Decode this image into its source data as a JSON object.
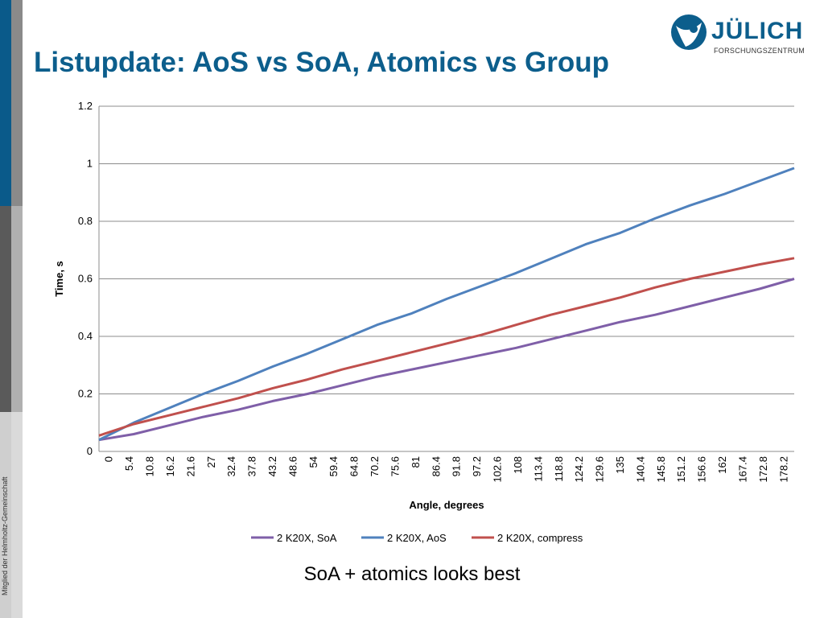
{
  "page": {
    "title": "Listupdate: AoS vs SoA, Atomics vs Group",
    "caption": "SoA + atomics looks best",
    "side_note": "Mitglied der Helmholtz-Gemeinschaft"
  },
  "logo": {
    "name": "JÜLICH",
    "subtitle": "FORSCHUNGSZENTRUM",
    "icon": "juelich-logo-icon",
    "color": "#0c5e8c"
  },
  "chart_data": {
    "type": "line",
    "xlabel": "Angle, degrees",
    "ylabel": "Time, s",
    "ylim": [
      0,
      1.2
    ],
    "yticks": [
      0,
      0.2,
      0.4,
      0.6,
      0.8,
      1,
      1.2
    ],
    "xtick_labels": [
      "0",
      "5.4",
      "10.8",
      "16.2",
      "21.6",
      "27",
      "32.4",
      "37.8",
      "43.2",
      "48.6",
      "54",
      "59.4",
      "64.8",
      "70.2",
      "75.6",
      "81",
      "86.4",
      "91.8",
      "97.2",
      "102.6",
      "108",
      "113.4",
      "118.8",
      "124.2",
      "129.6",
      "135",
      "140.4",
      "145.8",
      "151.2",
      "156.6",
      "162",
      "167.4",
      "172.8",
      "178.2"
    ],
    "x": [
      0,
      9,
      18,
      27,
      36,
      45,
      54,
      63,
      72,
      81,
      90,
      99,
      108,
      117,
      126,
      135,
      144,
      153,
      162,
      171,
      180
    ],
    "grid": "horizontal",
    "legend_position": "bottom",
    "series": [
      {
        "name": "2 K20X, SoA",
        "color": "#7f5fa8",
        "values": [
          0.04,
          0.06,
          0.09,
          0.12,
          0.145,
          0.175,
          0.2,
          0.23,
          0.26,
          0.285,
          0.31,
          0.335,
          0.36,
          0.39,
          0.42,
          0.45,
          0.475,
          0.505,
          0.535,
          0.565,
          0.6
        ]
      },
      {
        "name": "2 K20X, AoS",
        "color": "#4f81bd",
        "values": [
          0.04,
          0.1,
          0.15,
          0.2,
          0.245,
          0.295,
          0.34,
          0.39,
          0.44,
          0.48,
          0.53,
          0.575,
          0.62,
          0.67,
          0.72,
          0.76,
          0.81,
          0.855,
          0.895,
          0.94,
          0.985
        ]
      },
      {
        "name": "2 K20X, compress",
        "color": "#c0504d",
        "values": [
          0.055,
          0.095,
          0.125,
          0.155,
          0.185,
          0.22,
          0.25,
          0.285,
          0.315,
          0.345,
          0.375,
          0.405,
          0.44,
          0.475,
          0.505,
          0.535,
          0.57,
          0.6,
          0.625,
          0.65,
          0.672
        ]
      }
    ]
  }
}
